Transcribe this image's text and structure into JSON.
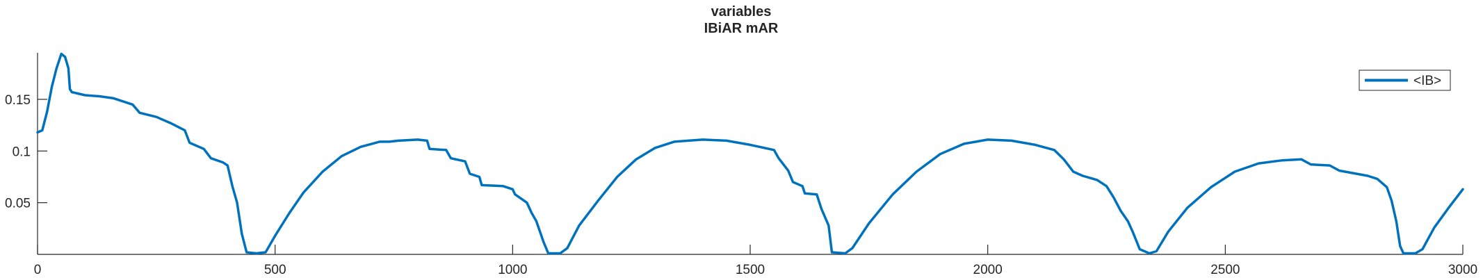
{
  "chart_data": {
    "type": "line",
    "title": "variables",
    "subtitle": "IBiAR mAR",
    "xlabel": "",
    "ylabel": "",
    "xlim": [
      0,
      3000
    ],
    "ylim": [
      0,
      0.195
    ],
    "x_ticks": [
      0,
      500,
      1000,
      1500,
      2000,
      2500,
      3000
    ],
    "x_tick_labels": [
      "0",
      "500",
      "1000",
      "1500",
      "2000",
      "2500",
      "3000"
    ],
    "y_ticks": [
      0.05,
      0.1,
      0.15
    ],
    "y_tick_labels": [
      "0.05",
      "0.1",
      "0.15"
    ],
    "grid": false,
    "legend_position": "top-right",
    "series": [
      {
        "name": "<IB>",
        "color": "#0072BD",
        "points": [
          [
            0,
            0.118
          ],
          [
            10,
            0.12
          ],
          [
            20,
            0.138
          ],
          [
            30,
            0.162
          ],
          [
            40,
            0.18
          ],
          [
            50,
            0.194
          ],
          [
            58,
            0.191
          ],
          [
            65,
            0.18
          ],
          [
            68,
            0.16
          ],
          [
            72,
            0.157
          ],
          [
            100,
            0.154
          ],
          [
            130,
            0.153
          ],
          [
            160,
            0.151
          ],
          [
            200,
            0.145
          ],
          [
            215,
            0.137
          ],
          [
            250,
            0.133
          ],
          [
            280,
            0.127
          ],
          [
            310,
            0.12
          ],
          [
            320,
            0.108
          ],
          [
            350,
            0.102
          ],
          [
            365,
            0.093
          ],
          [
            390,
            0.089
          ],
          [
            400,
            0.086
          ],
          [
            410,
            0.066
          ],
          [
            420,
            0.05
          ],
          [
            430,
            0.02
          ],
          [
            440,
            0.002
          ],
          [
            460,
            0.001
          ],
          [
            480,
            0.002
          ],
          [
            500,
            0.018
          ],
          [
            530,
            0.04
          ],
          [
            560,
            0.06
          ],
          [
            600,
            0.08
          ],
          [
            640,
            0.095
          ],
          [
            680,
            0.104
          ],
          [
            720,
            0.109
          ],
          [
            740,
            0.109
          ],
          [
            760,
            0.11
          ],
          [
            800,
            0.111
          ],
          [
            820,
            0.11
          ],
          [
            825,
            0.102
          ],
          [
            860,
            0.101
          ],
          [
            870,
            0.093
          ],
          [
            900,
            0.09
          ],
          [
            910,
            0.078
          ],
          [
            930,
            0.075
          ],
          [
            935,
            0.067
          ],
          [
            980,
            0.066
          ],
          [
            1000,
            0.063
          ],
          [
            1005,
            0.058
          ],
          [
            1030,
            0.05
          ],
          [
            1040,
            0.04
          ],
          [
            1050,
            0.032
          ],
          [
            1065,
            0.012
          ],
          [
            1075,
            0.001
          ],
          [
            1100,
            0.001
          ],
          [
            1115,
            0.006
          ],
          [
            1140,
            0.028
          ],
          [
            1180,
            0.052
          ],
          [
            1220,
            0.075
          ],
          [
            1260,
            0.092
          ],
          [
            1300,
            0.103
          ],
          [
            1340,
            0.109
          ],
          [
            1400,
            0.111
          ],
          [
            1450,
            0.11
          ],
          [
            1500,
            0.106
          ],
          [
            1550,
            0.101
          ],
          [
            1560,
            0.093
          ],
          [
            1580,
            0.081
          ],
          [
            1590,
            0.07
          ],
          [
            1610,
            0.066
          ],
          [
            1615,
            0.059
          ],
          [
            1640,
            0.058
          ],
          [
            1650,
            0.044
          ],
          [
            1665,
            0.028
          ],
          [
            1672,
            0.002
          ],
          [
            1700,
            0.001
          ],
          [
            1715,
            0.006
          ],
          [
            1750,
            0.03
          ],
          [
            1800,
            0.058
          ],
          [
            1850,
            0.08
          ],
          [
            1900,
            0.097
          ],
          [
            1950,
            0.107
          ],
          [
            2000,
            0.111
          ],
          [
            2050,
            0.11
          ],
          [
            2100,
            0.106
          ],
          [
            2140,
            0.101
          ],
          [
            2160,
            0.092
          ],
          [
            2180,
            0.08
          ],
          [
            2200,
            0.076
          ],
          [
            2230,
            0.072
          ],
          [
            2250,
            0.066
          ],
          [
            2265,
            0.055
          ],
          [
            2280,
            0.042
          ],
          [
            2295,
            0.032
          ],
          [
            2305,
            0.022
          ],
          [
            2320,
            0.005
          ],
          [
            2340,
            0.001
          ],
          [
            2355,
            0.003
          ],
          [
            2380,
            0.022
          ],
          [
            2420,
            0.045
          ],
          [
            2470,
            0.065
          ],
          [
            2520,
            0.08
          ],
          [
            2570,
            0.088
          ],
          [
            2620,
            0.091
          ],
          [
            2660,
            0.092
          ],
          [
            2680,
            0.087
          ],
          [
            2720,
            0.086
          ],
          [
            2740,
            0.081
          ],
          [
            2800,
            0.076
          ],
          [
            2820,
            0.073
          ],
          [
            2840,
            0.065
          ],
          [
            2850,
            0.052
          ],
          [
            2860,
            0.032
          ],
          [
            2868,
            0.008
          ],
          [
            2875,
            0.001
          ],
          [
            2900,
            0.001
          ],
          [
            2915,
            0.005
          ],
          [
            2940,
            0.026
          ],
          [
            2970,
            0.045
          ],
          [
            3000,
            0.063
          ]
        ]
      }
    ]
  }
}
